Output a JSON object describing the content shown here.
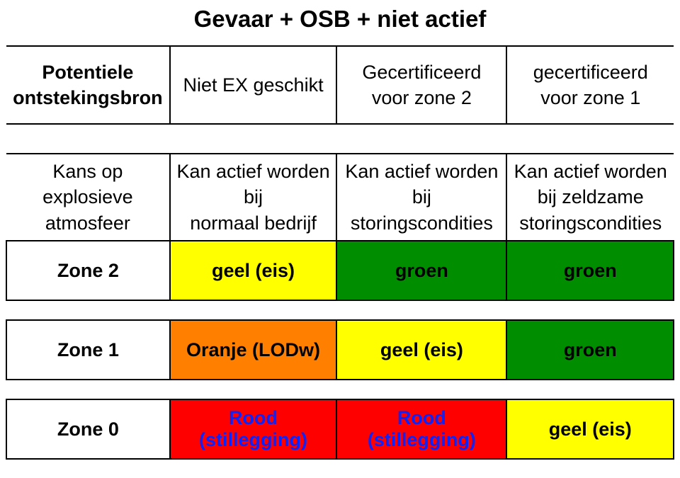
{
  "title": {
    "text": "Gevaar + OSB + niet actief",
    "fontsize": 33
  },
  "fonts": {
    "header": 27,
    "body": 27,
    "zone_label": 27
  },
  "colors": {
    "yellow": "#ffff00",
    "green": "#008e00",
    "orange": "#ff8000",
    "red": "#ff0000",
    "text_black": "#000000",
    "text_blue": "#0b24fb",
    "background": "#ffffff",
    "border": "#000000"
  },
  "col_widths_pct": [
    24.5,
    25,
    25.5,
    25
  ],
  "header": {
    "c0_l1": "Potentiele",
    "c0_l2": "ontstekingsbron",
    "c1": "Niet EX geschikt",
    "c2": "Gecertificeerd voor zone 2",
    "c3": "gecertificeerd voor zone 1"
  },
  "cond": {
    "c0_l1": "Kans op",
    "c0_l2": "explosieve atmosfeer",
    "c1_l1": "Kan actief worden bij",
    "c1_l2": "normaal bedrijf",
    "c2_l1": "Kan actief worden bij",
    "c2_l2": "storingscondities",
    "c3_l1": "Kan actief worden bij zeldzame",
    "c3_l2": "storingscondities"
  },
  "rows": [
    {
      "label": "Zone 2",
      "cells": [
        {
          "text": "geel (eis)",
          "bg": "#ffff00",
          "fg": "#000000"
        },
        {
          "text": "groen",
          "bg": "#008e00",
          "fg": "#000000"
        },
        {
          "text": "groen",
          "bg": "#008e00",
          "fg": "#000000"
        }
      ]
    },
    {
      "label": "Zone 1",
      "cells": [
        {
          "text": "Oranje (LODw)",
          "bg": "#ff8000",
          "fg": "#000000"
        },
        {
          "text": "geel (eis)",
          "bg": "#ffff00",
          "fg": "#000000"
        },
        {
          "text": "groen",
          "bg": "#008e00",
          "fg": "#000000"
        }
      ]
    },
    {
      "label": "Zone 0",
      "cells": [
        {
          "text": "Rood (stillegging)",
          "bg": "#ff0000",
          "fg": "#0b24fb"
        },
        {
          "text": "Rood (stillegging)",
          "bg": "#ff0000",
          "fg": "#0b24fb"
        },
        {
          "text": "geel (eis)",
          "bg": "#ffff00",
          "fg": "#000000"
        }
      ]
    }
  ]
}
